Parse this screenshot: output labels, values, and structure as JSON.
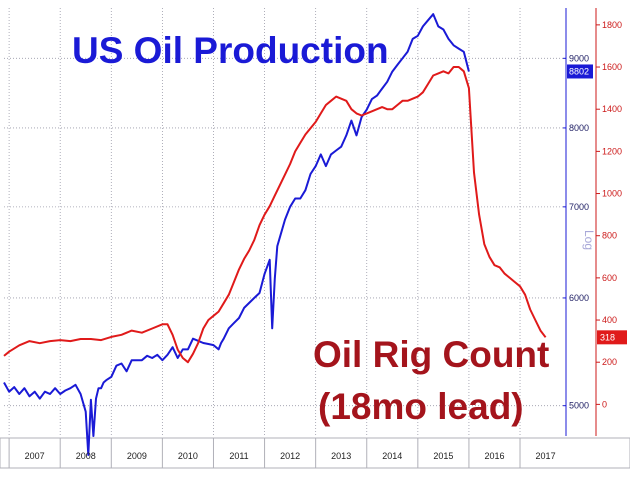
{
  "texts": {
    "title_production": "US Oil Production",
    "title_rig_line1": "Oil Rig Count",
    "title_rig_line2": "(18mo lead)",
    "log_label": "Log"
  },
  "colors": {
    "production": "#1a1ad6",
    "rigs": "#e01a1a",
    "axis_left": "#1a1ad6",
    "axis_right": "#cc1a1a",
    "grid": "#9a9aa8"
  },
  "chart_data": {
    "type": "line",
    "x_axis": {
      "ticks": [
        "2007",
        "2008",
        "2009",
        "2010",
        "2011",
        "2012",
        "2013",
        "2014",
        "2015",
        "2016",
        "2017"
      ],
      "range": [
        2006.9,
        2017.9
      ]
    },
    "left_axis": {
      "scale": "log",
      "ticks": [
        5000,
        6000,
        7000,
        8000,
        9000
      ],
      "range": [
        4750,
        9800
      ],
      "grid": true
    },
    "right_axis": {
      "ticks": [
        0,
        200,
        400,
        600,
        800,
        1000,
        1200,
        1400,
        1600,
        1800
      ],
      "range": [
        -150,
        1880
      ]
    },
    "badges": [
      {
        "axis": "left",
        "value": 8802,
        "label": "8802"
      },
      {
        "axis": "right",
        "value": 318,
        "label": "318"
      }
    ],
    "series": [
      {
        "axis": "left",
        "x": [
          2006.9,
          2007.0,
          2007.1,
          2007.2,
          2007.3,
          2007.4,
          2007.5,
          2007.6,
          2007.7,
          2007.8,
          2007.9,
          2008.0,
          2008.1,
          2008.2,
          2008.3,
          2008.4,
          2008.5,
          2008.55,
          2008.6,
          2008.65,
          2008.7,
          2008.75,
          2008.8,
          2008.85,
          2008.9,
          2009.0,
          2009.1,
          2009.2,
          2009.3,
          2009.4,
          2009.5,
          2009.6,
          2009.7,
          2009.8,
          2009.9,
          2010.0,
          2010.1,
          2010.2,
          2010.3,
          2010.4,
          2010.5,
          2010.6,
          2010.7,
          2010.8,
          2010.9,
          2011.0,
          2011.1,
          2011.15,
          2011.2,
          2011.3,
          2011.4,
          2011.5,
          2011.6,
          2011.7,
          2011.8,
          2011.9,
          2012.0,
          2012.1,
          2012.15,
          2012.2,
          2012.25,
          2012.3,
          2012.4,
          2012.5,
          2012.6,
          2012.7,
          2012.8,
          2012.9,
          2013.0,
          2013.1,
          2013.2,
          2013.3,
          2013.4,
          2013.5,
          2013.6,
          2013.7,
          2013.8,
          2013.9,
          2014.0,
          2014.1,
          2014.2,
          2014.3,
          2014.4,
          2014.5,
          2014.6,
          2014.7,
          2014.8,
          2014.9,
          2015.0,
          2015.1,
          2015.2,
          2015.3,
          2015.4,
          2015.5,
          2015.6,
          2015.7,
          2015.8,
          2015.9,
          2016.0
        ],
        "y": [
          5200,
          5120,
          5160,
          5100,
          5150,
          5080,
          5120,
          5060,
          5120,
          5100,
          5150,
          5100,
          5130,
          5150,
          5180,
          5100,
          4950,
          4600,
          5050,
          4750,
          5060,
          5150,
          5150,
          5200,
          5220,
          5250,
          5350,
          5370,
          5300,
          5400,
          5400,
          5400,
          5440,
          5420,
          5450,
          5400,
          5450,
          5520,
          5420,
          5500,
          5500,
          5600,
          5580,
          5560,
          5550,
          5540,
          5500,
          5560,
          5600,
          5700,
          5750,
          5800,
          5900,
          5950,
          6000,
          6050,
          6250,
          6400,
          5700,
          6200,
          6550,
          6650,
          6850,
          7000,
          7100,
          7100,
          7200,
          7400,
          7500,
          7650,
          7500,
          7650,
          7700,
          7750,
          7900,
          8100,
          7900,
          8150,
          8250,
          8400,
          8450,
          8550,
          8650,
          8800,
          8900,
          9000,
          9100,
          9300,
          9350,
          9500,
          9600,
          9700,
          9500,
          9450,
          9300,
          9200,
          9150,
          9100,
          8802
        ]
      },
      {
        "axis": "right",
        "x": [
          2006.9,
          2007.0,
          2007.2,
          2007.4,
          2007.6,
          2007.8,
          2008.0,
          2008.2,
          2008.4,
          2008.6,
          2008.8,
          2009.0,
          2009.2,
          2009.4,
          2009.6,
          2009.8,
          2010.0,
          2010.1,
          2010.2,
          2010.3,
          2010.4,
          2010.5,
          2010.6,
          2010.7,
          2010.8,
          2010.9,
          2011.0,
          2011.1,
          2011.2,
          2011.3,
          2011.4,
          2011.5,
          2011.6,
          2011.7,
          2011.8,
          2011.9,
          2012.0,
          2012.1,
          2012.2,
          2012.3,
          2012.4,
          2012.5,
          2012.6,
          2012.7,
          2012.8,
          2012.9,
          2013.0,
          2013.1,
          2013.2,
          2013.3,
          2013.4,
          2013.5,
          2013.6,
          2013.7,
          2013.8,
          2013.9,
          2014.0,
          2014.1,
          2014.2,
          2014.3,
          2014.4,
          2014.5,
          2014.6,
          2014.7,
          2014.8,
          2014.9,
          2015.0,
          2015.1,
          2015.2,
          2015.3,
          2015.4,
          2015.5,
          2015.6,
          2015.7,
          2015.8,
          2015.9,
          2016.0,
          2016.1,
          2016.2,
          2016.3,
          2016.4,
          2016.5,
          2016.6,
          2016.7,
          2016.8,
          2016.9,
          2017.0,
          2017.1,
          2017.2,
          2017.3,
          2017.4,
          2017.5
        ],
        "y": [
          230,
          250,
          280,
          300,
          290,
          300,
          305,
          300,
          310,
          310,
          305,
          320,
          330,
          350,
          340,
          360,
          380,
          380,
          330,
          260,
          220,
          200,
          240,
          290,
          360,
          400,
          420,
          440,
          480,
          520,
          580,
          640,
          690,
          730,
          780,
          850,
          900,
          940,
          990,
          1040,
          1090,
          1140,
          1200,
          1240,
          1280,
          1310,
          1340,
          1380,
          1420,
          1440,
          1460,
          1450,
          1440,
          1400,
          1380,
          1370,
          1380,
          1390,
          1400,
          1410,
          1400,
          1400,
          1420,
          1440,
          1440,
          1450,
          1460,
          1480,
          1520,
          1560,
          1570,
          1580,
          1570,
          1600,
          1600,
          1580,
          1500,
          1100,
          900,
          760,
          700,
          660,
          650,
          620,
          600,
          580,
          560,
          520,
          450,
          400,
          350,
          318
        ]
      }
    ]
  }
}
